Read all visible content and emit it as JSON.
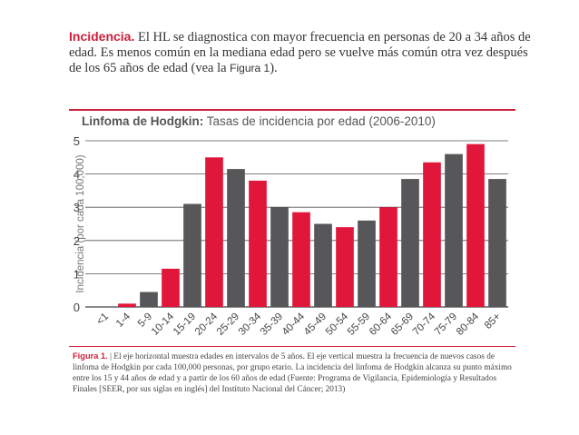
{
  "intro": {
    "lead": "Incidencia.",
    "text": " El HL se diagnostica con mayor frecuencia en personas de 20 a 34 años de edad. Es menos común en la mediana edad pero se vuelve más común otra vez después de los 65 años de edad (vea la ",
    "figref": "Figura 1",
    "end": ")."
  },
  "chart_title": {
    "bold": "Linfoma de Hodgkin:",
    "rest": " Tasas de incidencia por edad (2006-2010)"
  },
  "caption": {
    "label": "Figura 1.",
    "sep": " | ",
    "text": "El eje horizontal muestra edades en intervalos de 5 años. El eje vertical muestra la frecuencia de nuevos casos de linfoma de Hodgkin por cada 100,000 personas, por grupo etario. La incidencia del linfoma de Hodgkin alcanza su punto máximo entre los 15 y 44 años de edad y a partir de los 60 años de edad (Fuente: Programa de Vigilancia, Epidemiología y Resultados Finales [SEER, por sus siglas en inglés] del Instituto Nacional del Cáncer; 2013)"
  },
  "colors": {
    "red": "#e0173a",
    "gray": "#57575a",
    "accent": "#cf1f3a",
    "axis": "#555555"
  },
  "chart_data": {
    "type": "bar",
    "title": "Linfoma de Hodgkin: Tasas de incidencia por edad (2006-2010)",
    "xlabel": "",
    "ylabel": "Incidencia (por cada 100,000)",
    "ylim": [
      0,
      5
    ],
    "yticks": [
      "0",
      "1",
      "2",
      "3",
      "4",
      "5"
    ],
    "grid": true,
    "categories": [
      "<1",
      "1-4",
      "5-9",
      "10-14",
      "15-19",
      "20-24",
      "25-29",
      "30-34",
      "35-39",
      "40-44",
      "45-49",
      "50-54",
      "55-59",
      "60-64",
      "65-69",
      "70-74",
      "75-79",
      "80-84",
      "85+"
    ],
    "values": [
      0.0,
      0.1,
      0.45,
      1.15,
      3.1,
      4.5,
      4.15,
      3.8,
      3.0,
      2.85,
      2.5,
      2.4,
      2.6,
      3.0,
      3.85,
      4.35,
      4.6,
      4.9,
      3.85
    ],
    "bar_colors": [
      "red",
      "red",
      "gray",
      "red",
      "gray",
      "red",
      "gray",
      "red",
      "gray",
      "red",
      "gray",
      "red",
      "gray",
      "red",
      "gray",
      "red",
      "gray",
      "red",
      "gray"
    ]
  }
}
